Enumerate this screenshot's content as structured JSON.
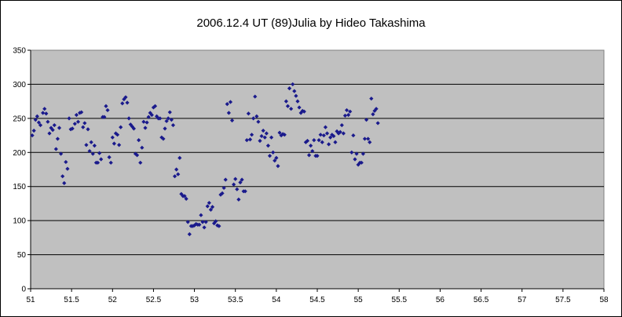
{
  "chart_data": {
    "type": "scatter",
    "title": "2006.12.4 UT (89)Julia  by Hideo Takashima",
    "xlabel": "",
    "ylabel": "",
    "xlim": [
      51,
      58
    ],
    "ylim": [
      0,
      350
    ],
    "x_ticks": [
      51,
      51.5,
      52,
      52.5,
      53,
      53.5,
      54,
      54.5,
      55,
      55.5,
      56,
      56.5,
      57,
      57.5,
      58
    ],
    "x_tick_labels": [
      "51",
      "51.5",
      "52",
      "52.5",
      "53",
      "53.5",
      "54",
      "54.5",
      "55",
      "55.5",
      "56",
      "56.5",
      "57",
      "57.5",
      "58"
    ],
    "y_ticks": [
      0,
      50,
      100,
      150,
      200,
      250,
      300,
      350
    ],
    "y_tick_labels": [
      "0",
      "50",
      "100",
      "150",
      "200",
      "250",
      "300",
      "350"
    ],
    "grid": "horizontal",
    "legend": "none",
    "colors": {
      "plot_background": "#c0c0c0",
      "marker": "#1a1a8c",
      "gridline": "#000000"
    },
    "series": [
      {
        "marker": "diamond",
        "points": [
          [
            51.02,
            225
          ],
          [
            51.04,
            232
          ],
          [
            51.06,
            248
          ],
          [
            51.08,
            253
          ],
          [
            51.1,
            244
          ],
          [
            51.12,
            240
          ],
          [
            51.15,
            258
          ],
          [
            51.17,
            264
          ],
          [
            51.19,
            257
          ],
          [
            51.21,
            245
          ],
          [
            51.23,
            228
          ],
          [
            51.25,
            236
          ],
          [
            51.27,
            233
          ],
          [
            51.29,
            240
          ],
          [
            51.31,
            205
          ],
          [
            51.33,
            220
          ],
          [
            51.35,
            236
          ],
          [
            51.37,
            198
          ],
          [
            51.39,
            165
          ],
          [
            51.41,
            155
          ],
          [
            51.43,
            186
          ],
          [
            51.45,
            176
          ],
          [
            51.47,
            250
          ],
          [
            51.49,
            234
          ],
          [
            51.51,
            235
          ],
          [
            51.54,
            242
          ],
          [
            51.56,
            255
          ],
          [
            51.58,
            245
          ],
          [
            51.6,
            258
          ],
          [
            51.62,
            259
          ],
          [
            51.64,
            237
          ],
          [
            51.66,
            243
          ],
          [
            51.68,
            211
          ],
          [
            51.7,
            234
          ],
          [
            51.72,
            202
          ],
          [
            51.74,
            215
          ],
          [
            51.76,
            198
          ],
          [
            51.78,
            210
          ],
          [
            51.8,
            185
          ],
          [
            51.82,
            185
          ],
          [
            51.84,
            199
          ],
          [
            51.86,
            190
          ],
          [
            51.88,
            252
          ],
          [
            51.9,
            252
          ],
          [
            51.92,
            268
          ],
          [
            51.94,
            262
          ],
          [
            51.96,
            193
          ],
          [
            51.98,
            185
          ],
          [
            52,
            222
          ],
          [
            52.02,
            213
          ],
          [
            52.04,
            228
          ],
          [
            52.06,
            226
          ],
          [
            52.08,
            211
          ],
          [
            52.1,
            237
          ],
          [
            52.12,
            272
          ],
          [
            52.14,
            278
          ],
          [
            52.16,
            281
          ],
          [
            52.18,
            273
          ],
          [
            52.2,
            250
          ],
          [
            52.22,
            241
          ],
          [
            52.24,
            238
          ],
          [
            52.26,
            235
          ],
          [
            52.28,
            198
          ],
          [
            52.3,
            196
          ],
          [
            52.32,
            218
          ],
          [
            52.34,
            185
          ],
          [
            52.36,
            207
          ],
          [
            52.38,
            245
          ],
          [
            52.4,
            236
          ],
          [
            52.42,
            244
          ],
          [
            52.44,
            252
          ],
          [
            52.46,
            258
          ],
          [
            52.48,
            255
          ],
          [
            52.5,
            266
          ],
          [
            52.52,
            268
          ],
          [
            52.54,
            253
          ],
          [
            52.56,
            250
          ],
          [
            52.58,
            250
          ],
          [
            52.6,
            222
          ],
          [
            52.62,
            220
          ],
          [
            52.64,
            235
          ],
          [
            52.66,
            246
          ],
          [
            52.68,
            250
          ],
          [
            52.7,
            259
          ],
          [
            52.72,
            248
          ],
          [
            52.74,
            240
          ],
          [
            52.76,
            165
          ],
          [
            52.78,
            175
          ],
          [
            52.8,
            168
          ],
          [
            52.82,
            192
          ],
          [
            52.84,
            139
          ],
          [
            52.86,
            136
          ],
          [
            52.88,
            136
          ],
          [
            52.9,
            132
          ],
          [
            52.92,
            98
          ],
          [
            52.94,
            80
          ],
          [
            52.96,
            92
          ],
          [
            52.98,
            92
          ],
          [
            53,
            93
          ],
          [
            53.02,
            95
          ],
          [
            53.04,
            94
          ],
          [
            53.06,
            94
          ],
          [
            53.08,
            108
          ],
          [
            53.1,
            98
          ],
          [
            53.12,
            90
          ],
          [
            53.14,
            98
          ],
          [
            53.16,
            121
          ],
          [
            53.18,
            126
          ],
          [
            53.2,
            116
          ],
          [
            53.22,
            120
          ],
          [
            53.24,
            96
          ],
          [
            53.26,
            99
          ],
          [
            53.28,
            93
          ],
          [
            53.3,
            92
          ],
          [
            53.32,
            138
          ],
          [
            53.34,
            140
          ],
          [
            53.36,
            148
          ],
          [
            53.38,
            160
          ],
          [
            53.4,
            271
          ],
          [
            53.42,
            258
          ],
          [
            53.44,
            274
          ],
          [
            53.46,
            247
          ],
          [
            53.48,
            153
          ],
          [
            53.5,
            161
          ],
          [
            53.52,
            146
          ],
          [
            53.54,
            131
          ],
          [
            53.56,
            156
          ],
          [
            53.58,
            160
          ],
          [
            53.6,
            143
          ],
          [
            53.62,
            143
          ],
          [
            53.64,
            218
          ],
          [
            53.66,
            257
          ],
          [
            53.68,
            219
          ],
          [
            53.7,
            226
          ],
          [
            53.72,
            250
          ],
          [
            53.74,
            282
          ],
          [
            53.76,
            253
          ],
          [
            53.78,
            245
          ],
          [
            53.8,
            217
          ],
          [
            53.82,
            224
          ],
          [
            53.84,
            232
          ],
          [
            53.86,
            222
          ],
          [
            53.88,
            228
          ],
          [
            53.9,
            210
          ],
          [
            53.92,
            195
          ],
          [
            53.94,
            222
          ],
          [
            53.96,
            200
          ],
          [
            53.98,
            188
          ],
          [
            54,
            192
          ],
          [
            54.02,
            180
          ],
          [
            54.04,
            229
          ],
          [
            54.06,
            225
          ],
          [
            54.08,
            227
          ],
          [
            54.1,
            226
          ],
          [
            54.12,
            275
          ],
          [
            54.14,
            268
          ],
          [
            54.16,
            294
          ],
          [
            54.18,
            264
          ],
          [
            54.2,
            300
          ],
          [
            54.22,
            290
          ],
          [
            54.24,
            283
          ],
          [
            54.26,
            275
          ],
          [
            54.28,
            266
          ],
          [
            54.3,
            258
          ],
          [
            54.32,
            261
          ],
          [
            54.34,
            260
          ],
          [
            54.36,
            215
          ],
          [
            54.38,
            217
          ],
          [
            54.4,
            196
          ],
          [
            54.42,
            210
          ],
          [
            54.44,
            202
          ],
          [
            54.46,
            218
          ],
          [
            54.48,
            195
          ],
          [
            54.5,
            195
          ],
          [
            54.52,
            218
          ],
          [
            54.54,
            226
          ],
          [
            54.56,
            215
          ],
          [
            54.58,
            225
          ],
          [
            54.6,
            237
          ],
          [
            54.62,
            228
          ],
          [
            54.64,
            212
          ],
          [
            54.66,
            222
          ],
          [
            54.68,
            226
          ],
          [
            54.7,
            224
          ],
          [
            54.72,
            215
          ],
          [
            54.74,
            231
          ],
          [
            54.76,
            228
          ],
          [
            54.78,
            230
          ],
          [
            54.8,
            240
          ],
          [
            54.82,
            228
          ],
          [
            54.84,
            254
          ],
          [
            54.86,
            262
          ],
          [
            54.88,
            255
          ],
          [
            54.9,
            260
          ],
          [
            54.92,
            200
          ],
          [
            54.94,
            225
          ],
          [
            54.96,
            190
          ],
          [
            54.98,
            198
          ],
          [
            55,
            182
          ],
          [
            55.02,
            185
          ],
          [
            55.04,
            185
          ],
          [
            55.06,
            198
          ],
          [
            55.08,
            220
          ],
          [
            55.1,
            248
          ],
          [
            55.12,
            220
          ],
          [
            55.14,
            215
          ],
          [
            55.16,
            279
          ],
          [
            55.18,
            256
          ],
          [
            55.2,
            261
          ],
          [
            55.22,
            264
          ],
          [
            55.24,
            243
          ]
        ]
      }
    ]
  }
}
